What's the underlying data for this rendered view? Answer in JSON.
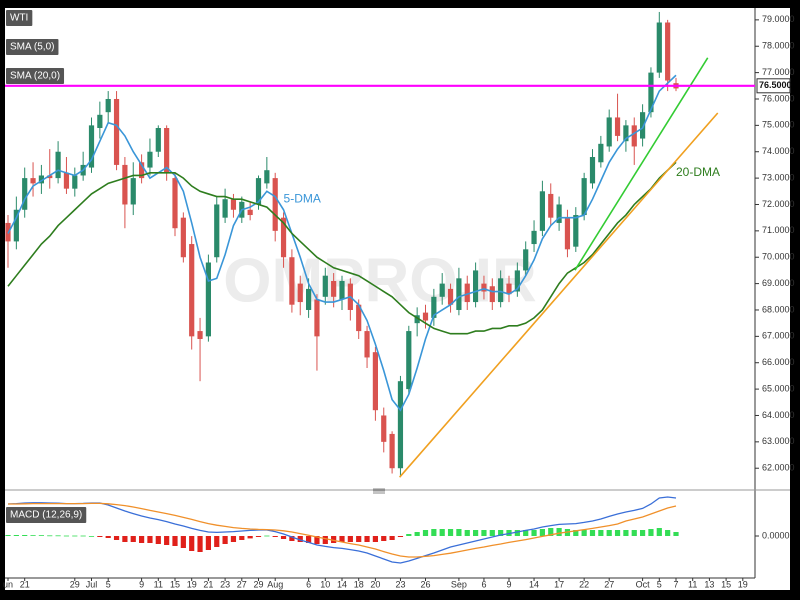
{
  "chart_data": [
    {
      "type": "candlestick",
      "title": "WTI",
      "watermark": "OMPRO.IR",
      "ylim": [
        61.25,
        79.45
      ],
      "yticks": [
        {
          "value": 62,
          "label": "62.0000"
        },
        {
          "value": 63,
          "label": "63.0000"
        },
        {
          "value": 64,
          "label": "64.0000"
        },
        {
          "value": 65,
          "label": "65.0000"
        },
        {
          "value": 66,
          "label": "66.0000"
        },
        {
          "value": 67,
          "label": "67.0000"
        },
        {
          "value": 68,
          "label": "68.0000"
        },
        {
          "value": 69,
          "label": "69.0000"
        },
        {
          "value": 70,
          "label": "70.0000"
        },
        {
          "value": 71,
          "label": "71.0000"
        },
        {
          "value": 72,
          "label": "72.0000"
        },
        {
          "value": 73,
          "label": "73.0000"
        },
        {
          "value": 74,
          "label": "74.0000"
        },
        {
          "value": 75,
          "label": "75.0000"
        },
        {
          "value": 76,
          "label": "76.0000"
        },
        {
          "value": 77,
          "label": "77.0000"
        },
        {
          "value": 78,
          "label": "78.0000"
        },
        {
          "value": 79,
          "label": "79.0000"
        }
      ],
      "grid": false,
      "up_color": "#2a8a6a",
      "down_color": "#d9534f",
      "open": [
        71.3,
        70.6,
        71.8,
        73.0,
        72.8,
        73.1,
        73.0,
        73.2,
        72.6,
        73.1,
        73.4,
        74.9,
        75.5,
        76.0,
        73.5,
        72.0,
        73.6,
        73.4,
        74.0,
        74.9,
        73.0,
        71.5,
        70.5,
        67.2,
        67.0,
        70.0,
        71.5,
        72.2,
        71.5,
        71.8,
        72.0,
        72.8,
        73.0,
        71.5,
        70.0,
        69.0,
        68.0,
        68.4,
        68.5,
        69.1,
        68.4,
        69.0,
        68.2,
        67.2,
        66.4,
        64.0,
        63.3,
        62.0,
        65.0,
        67.5,
        67.9,
        67.7,
        68.5,
        68.8,
        68.0,
        69.0,
        68.3,
        69.0,
        68.9,
        68.3,
        69.0,
        68.7,
        69.5,
        70.5,
        71.0,
        72.4,
        71.3,
        71.5,
        70.4,
        71.6,
        72.8,
        73.6,
        74.2,
        75.3,
        74.4,
        75.0,
        74.5,
        75.5,
        77.0,
        78.9,
        76.6,
        null,
        null,
        null,
        null,
        null,
        null,
        null,
        null
      ],
      "high": [
        71.6,
        72.3,
        73.4,
        73.6,
        73.5,
        74.1,
        74.4,
        73.8,
        73.4,
        74.0,
        75.3,
        75.9,
        76.3,
        76.3,
        73.8,
        73.6,
        73.9,
        74.5,
        75.0,
        75.0,
        73.2,
        71.7,
        70.8,
        67.7,
        70.1,
        72.3,
        72.6,
        72.4,
        72.3,
        72.1,
        73.1,
        73.8,
        73.2,
        71.7,
        70.3,
        69.3,
        69.2,
        68.6,
        69.6,
        69.4,
        69.3,
        69.2,
        68.4,
        67.4,
        66.6,
        64.3,
        63.4,
        65.5,
        67.4,
        68.1,
        68.2,
        68.8,
        69.4,
        69.0,
        69.6,
        69.3,
        69.8,
        69.3,
        69.2,
        69.5,
        69.3,
        69.8,
        70.6,
        71.4,
        72.9,
        72.8,
        72.3,
        71.8,
        71.9,
        73.2,
        74.1,
        74.6,
        75.6,
        76.2,
        75.2,
        75.3,
        75.8,
        77.2,
        79.3,
        79.0,
        76.8,
        null,
        null,
        null,
        null,
        null,
        null,
        null,
        null
      ],
      "low": [
        69.6,
        70.3,
        71.5,
        72.3,
        72.4,
        72.6,
        72.8,
        72.4,
        72.3,
        72.9,
        73.2,
        74.5,
        75.1,
        73.3,
        71.1,
        71.6,
        72.8,
        73.1,
        73.8,
        72.9,
        70.8,
        69.8,
        66.5,
        65.3,
        66.8,
        69.8,
        71.3,
        71.5,
        71.3,
        71.4,
        71.8,
        72.6,
        70.6,
        69.6,
        67.9,
        67.8,
        67.7,
        65.7,
        68.2,
        68.1,
        68.0,
        67.6,
        66.9,
        65.8,
        63.8,
        62.6,
        61.8,
        61.7,
        64.8,
        67.0,
        67.3,
        67.4,
        68.2,
        67.9,
        67.8,
        68.0,
        68.1,
        68.4,
        68.0,
        68.1,
        68.3,
        68.5,
        69.3,
        70.2,
        70.8,
        71.2,
        71.0,
        70.0,
        70.2,
        71.4,
        72.6,
        73.4,
        74.0,
        74.4,
        74.0,
        73.5,
        74.2,
        75.3,
        76.8,
        76.3,
        76.3,
        null,
        null,
        null,
        null,
        null,
        null,
        null,
        null
      ],
      "close": [
        70.6,
        71.8,
        73.0,
        72.8,
        73.1,
        73.0,
        74.0,
        72.6,
        73.1,
        73.5,
        75.0,
        75.4,
        76.0,
        73.5,
        72.0,
        73.0,
        73.0,
        74.0,
        74.9,
        73.2,
        71.1,
        70.0,
        67.0,
        66.9,
        69.8,
        72.0,
        72.2,
        71.8,
        72.1,
        71.6,
        73.0,
        73.3,
        71.0,
        70.0,
        68.2,
        68.3,
        68.8,
        67.0,
        69.3,
        68.5,
        69.1,
        68.0,
        67.2,
        66.2,
        64.2,
        63.0,
        62.0,
        65.3,
        67.2,
        67.8,
        67.6,
        68.5,
        69.0,
        68.2,
        69.2,
        68.3,
        69.5,
        68.7,
        68.3,
        69.2,
        68.6,
        69.5,
        70.3,
        71.0,
        72.5,
        71.5,
        72.0,
        70.3,
        71.6,
        73.0,
        73.8,
        74.3,
        75.3,
        74.6,
        75.0,
        74.2,
        75.5,
        77.0,
        78.9,
        76.7,
        76.4,
        null,
        null,
        null,
        null,
        null,
        null,
        null,
        null
      ],
      "series": [
        {
          "name": "SMA (5,0)",
          "color": "#3a96d8",
          "values": [
            70.9,
            71.5,
            72.2,
            72.7,
            72.9,
            73.1,
            73.3,
            73.2,
            73.1,
            73.3,
            73.7,
            74.4,
            75.1,
            75.0,
            74.6,
            74.0,
            73.5,
            73.0,
            73.2,
            73.4,
            73.1,
            72.5,
            71.3,
            70.0,
            69.1,
            69.2,
            70.1,
            71.2,
            71.8,
            71.9,
            72.1,
            72.5,
            72.3,
            71.8,
            70.9,
            70.0,
            69.0,
            68.4,
            68.3,
            68.3,
            68.4,
            68.5,
            68.2,
            67.6,
            66.7,
            65.7,
            64.6,
            64.2,
            64.8,
            65.8,
            66.9,
            67.8,
            68.0,
            68.2,
            68.5,
            68.6,
            68.7,
            68.8,
            68.7,
            68.7,
            68.6,
            68.8,
            69.3,
            69.9,
            70.7,
            71.2,
            71.5,
            71.5,
            71.5,
            71.6,
            72.2,
            72.9,
            73.6,
            74.1,
            74.5,
            74.7,
            74.9,
            75.6,
            76.3,
            76.6,
            76.9,
            null,
            null,
            null,
            null,
            null,
            null,
            null,
            null
          ]
        },
        {
          "name": "SMA (20,0)",
          "color": "#2e7d1e",
          "values": [
            68.9,
            69.3,
            69.7,
            70.1,
            70.5,
            70.8,
            71.2,
            71.5,
            71.8,
            72.1,
            72.4,
            72.6,
            72.8,
            72.9,
            73.0,
            73.1,
            73.1,
            73.2,
            73.2,
            73.2,
            73.2,
            73.0,
            72.7,
            72.5,
            72.4,
            72.3,
            72.3,
            72.2,
            72.2,
            72.1,
            72.0,
            71.9,
            71.6,
            71.3,
            70.9,
            70.6,
            70.3,
            70.0,
            69.8,
            69.6,
            69.5,
            69.4,
            69.3,
            69.1,
            68.9,
            68.7,
            68.5,
            68.2,
            67.9,
            67.7,
            67.5,
            67.3,
            67.2,
            67.1,
            67.1,
            67.1,
            67.2,
            67.2,
            67.3,
            67.3,
            67.4,
            67.4,
            67.5,
            67.7,
            68.0,
            68.5,
            69.0,
            69.4,
            69.6,
            69.8,
            70.1,
            70.5,
            70.9,
            71.3,
            71.6,
            72.0,
            72.3,
            72.6,
            73.0,
            73.3,
            73.6,
            null,
            null,
            null,
            null,
            null,
            null,
            null,
            null
          ]
        }
      ],
      "hline": {
        "value": 76.5,
        "label": "76.5000",
        "color": "#ff00ff"
      },
      "trendlines": [
        {
          "color": "#33cc33",
          "x": [
            67.9,
            83.8
          ],
          "y": [
            69.51,
            77.56
          ]
        },
        {
          "color": "#f0a020",
          "x": [
            46.9,
            85.0
          ],
          "y": [
            61.66,
            75.47
          ]
        }
      ],
      "annotations": [
        {
          "text": "5-DMA",
          "x": 33.0,
          "y": 72.2,
          "color": "#3a96d8"
        },
        {
          "text": "20-DMA",
          "x": 80.0,
          "y": 73.2,
          "color": "#2e7d1e"
        }
      ]
    },
    {
      "type": "macd",
      "title": "MACD (12,26,9)",
      "categories": [
        "un",
        null,
        "21",
        null,
        null,
        null,
        null,
        null,
        "29",
        null,
        "Jul",
        null,
        "5",
        null,
        null,
        null,
        "9",
        null,
        "11",
        null,
        "15",
        null,
        "19",
        null,
        "21",
        null,
        "23",
        null,
        "27",
        null,
        "29",
        null,
        "Aug",
        null,
        null,
        null,
        "6",
        null,
        "10",
        null,
        "14",
        null,
        "18",
        null,
        "20",
        null,
        null,
        "23",
        null,
        null,
        "26",
        null,
        null,
        null,
        "Sep",
        null,
        null,
        "6",
        null,
        null,
        "9",
        null,
        null,
        "14",
        null,
        null,
        "17",
        null,
        null,
        "22",
        null,
        null,
        "27",
        null,
        null,
        null,
        "Oct",
        null,
        "5",
        null,
        "7",
        null,
        "11",
        null,
        "13",
        null,
        "15",
        null,
        "19"
      ],
      "ylim": [
        -2.1,
        2.05
      ],
      "yticks": [
        {
          "value": 0,
          "label": "0.0000"
        }
      ],
      "series": [
        {
          "color": "#3a6fd8",
          "values": [
            1.6,
            1.62,
            1.65,
            1.66,
            1.66,
            1.65,
            1.64,
            1.62,
            1.62,
            1.63,
            1.65,
            1.65,
            1.55,
            1.4,
            1.25,
            1.12,
            1.0,
            0.9,
            0.82,
            0.72,
            0.6,
            0.5,
            0.38,
            0.28,
            0.2,
            0.18,
            0.2,
            0.22,
            0.25,
            0.28,
            0.3,
            0.3,
            0.22,
            0.1,
            -0.05,
            -0.2,
            -0.32,
            -0.45,
            -0.52,
            -0.58,
            -0.62,
            -0.68,
            -0.75,
            -0.85,
            -1.0,
            -1.15,
            -1.3,
            -1.35,
            -1.25,
            -1.12,
            -0.98,
            -0.85,
            -0.7,
            -0.55,
            -0.45,
            -0.35,
            -0.25,
            -0.15,
            -0.05,
            0.05,
            0.12,
            0.2,
            0.28,
            0.35,
            0.45,
            0.52,
            0.58,
            0.6,
            0.62,
            0.68,
            0.75,
            0.85,
            0.98,
            1.1,
            1.2,
            1.28,
            1.38,
            1.6,
            1.9,
            1.95,
            1.9,
            null,
            null,
            null,
            null,
            null,
            null,
            null,
            null
          ]
        },
        {
          "color": "#f0902a",
          "values": [
            1.6,
            1.6,
            1.61,
            1.62,
            1.62,
            1.62,
            1.62,
            1.62,
            1.62,
            1.62,
            1.63,
            1.63,
            1.61,
            1.57,
            1.52,
            1.45,
            1.37,
            1.28,
            1.2,
            1.12,
            1.03,
            0.93,
            0.83,
            0.72,
            0.62,
            0.54,
            0.48,
            0.42,
            0.38,
            0.35,
            0.33,
            0.32,
            0.3,
            0.26,
            0.2,
            0.12,
            0.04,
            -0.05,
            -0.13,
            -0.22,
            -0.3,
            -0.38,
            -0.45,
            -0.55,
            -0.65,
            -0.78,
            -0.9,
            -1.0,
            -1.05,
            -1.05,
            -1.02,
            -0.98,
            -0.92,
            -0.86,
            -0.78,
            -0.7,
            -0.62,
            -0.55,
            -0.47,
            -0.4,
            -0.32,
            -0.25,
            -0.18,
            -0.1,
            -0.02,
            0.06,
            0.14,
            0.2,
            0.26,
            0.32,
            0.38,
            0.45,
            0.52,
            0.6,
            0.75,
            0.85,
            0.95,
            1.1,
            1.25,
            1.4,
            1.5,
            null,
            null,
            null,
            null,
            null,
            null,
            null,
            null
          ]
        }
      ],
      "histogram": {
        "up_color": "#33dd55",
        "down_color": "#e0201a",
        "values": [
          0.05,
          0.05,
          0.05,
          0.04,
          0.04,
          0.03,
          0.03,
          0.02,
          0.02,
          0.02,
          0.0,
          -0.05,
          -0.1,
          -0.2,
          -0.3,
          -0.3,
          -0.35,
          -0.35,
          -0.4,
          -0.45,
          -0.5,
          -0.6,
          -0.75,
          -0.8,
          -0.7,
          -0.55,
          -0.4,
          -0.3,
          -0.2,
          -0.12,
          -0.05,
          0.02,
          -0.05,
          -0.15,
          -0.25,
          -0.3,
          -0.35,
          -0.4,
          -0.4,
          -0.35,
          -0.3,
          -0.3,
          -0.3,
          -0.3,
          -0.3,
          -0.25,
          -0.2,
          -0.05,
          0.1,
          0.2,
          0.3,
          0.35,
          0.35,
          0.35,
          0.35,
          0.3,
          0.3,
          0.3,
          0.3,
          0.3,
          0.3,
          0.3,
          0.3,
          0.3,
          0.35,
          0.4,
          0.4,
          0.35,
          0.3,
          0.3,
          0.3,
          0.3,
          0.3,
          0.3,
          0.3,
          0.3,
          0.3,
          0.35,
          0.4,
          0.3,
          0.2,
          null,
          null,
          null,
          null,
          null,
          null,
          null,
          null
        ]
      }
    }
  ]
}
